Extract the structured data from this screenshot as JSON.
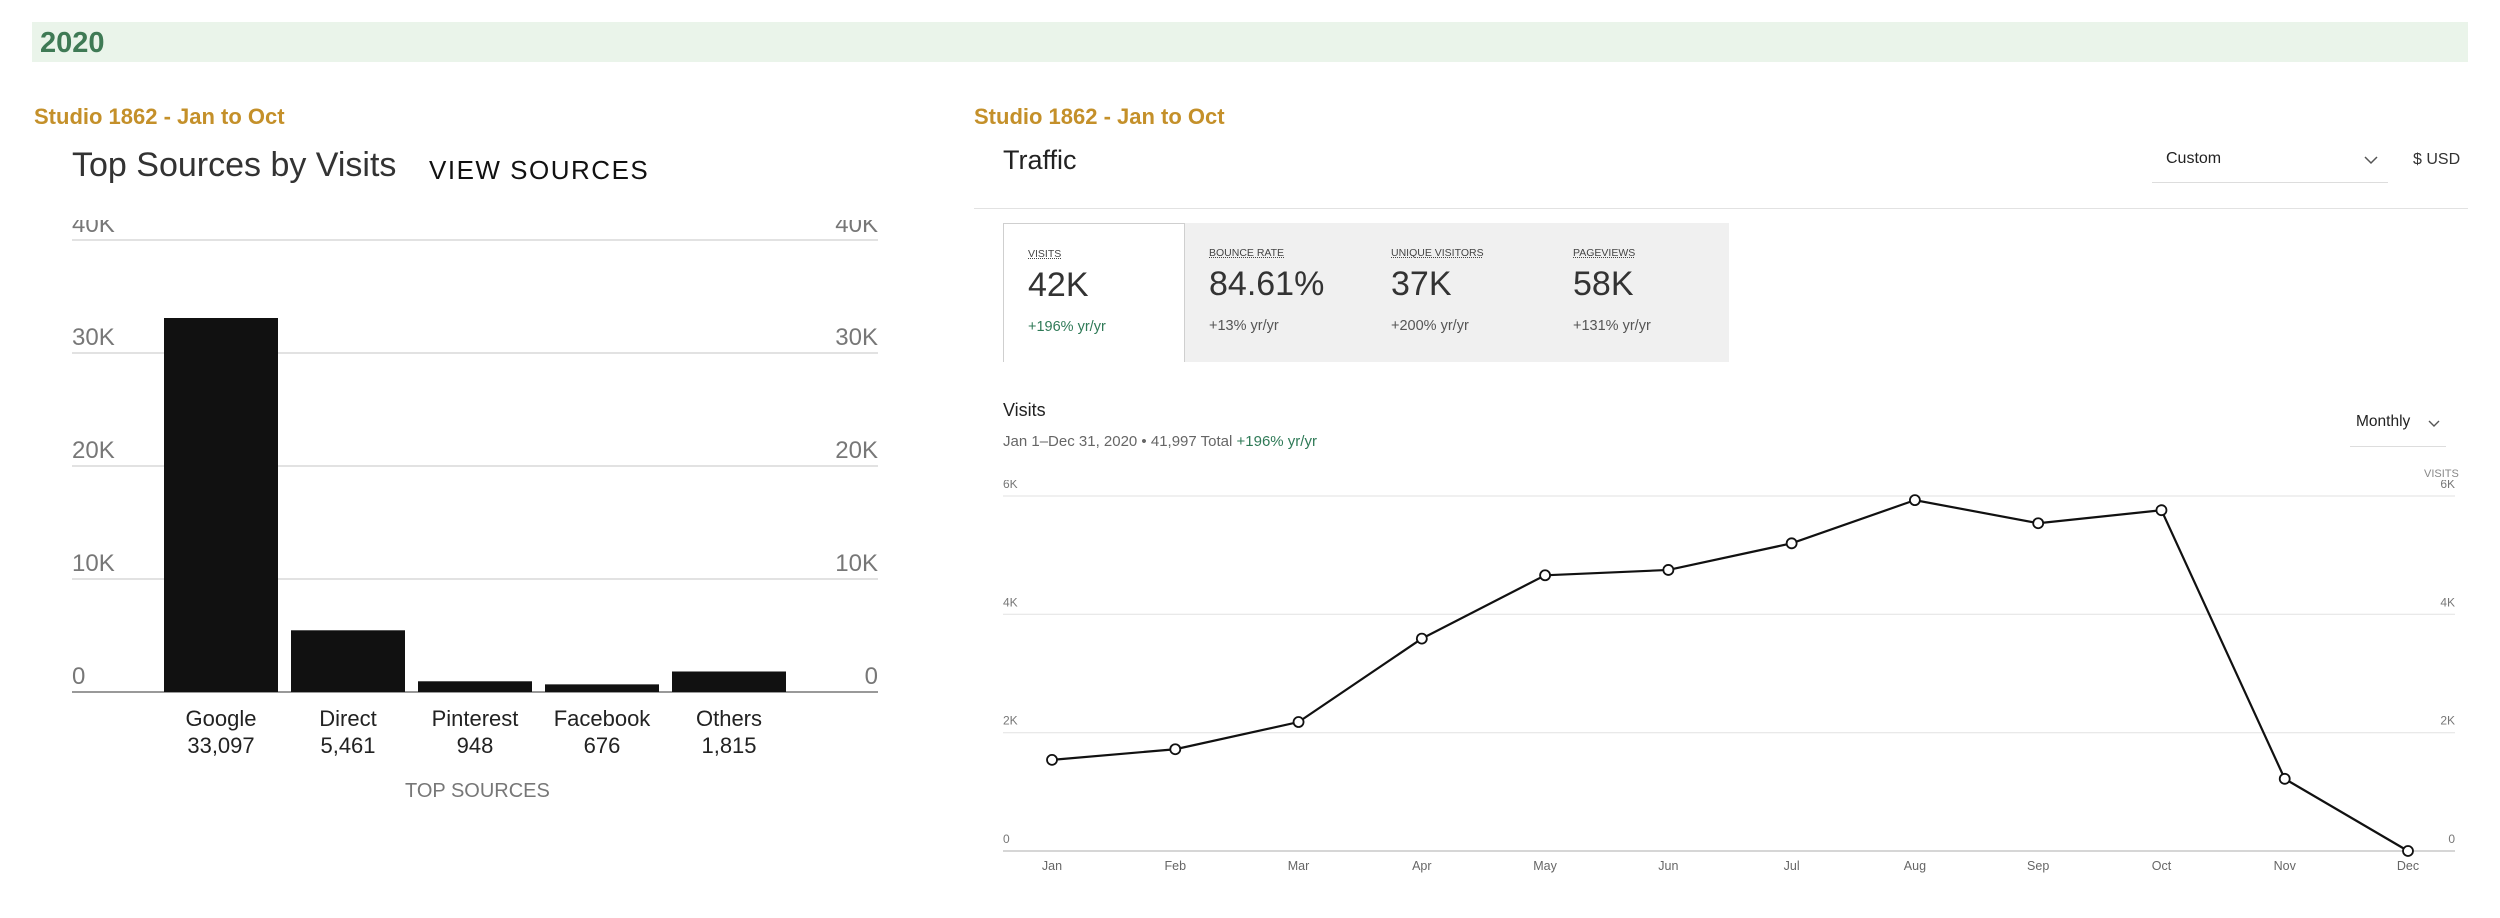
{
  "year_label": "2020",
  "left_panel": {
    "studio_label": "Studio 1862 - Jan to Oct",
    "title": "Top Sources by Visits",
    "view_sources_link": "VIEW SOURCES",
    "x_axis_title": "TOP SOURCES"
  },
  "right_panel": {
    "studio_label": "Studio 1862 - Jan to Oct",
    "title": "Traffic",
    "range_dropdown": "Custom",
    "currency": "$ USD",
    "kpis": [
      {
        "label": "Visits",
        "value": "42K",
        "change": "+196% yr/yr",
        "active": true
      },
      {
        "label": "Bounce Rate",
        "value": "84.61%",
        "change": "+13% yr/yr",
        "active": false
      },
      {
        "label": "Unique Visitors",
        "value": "37K",
        "change": "+200% yr/yr",
        "active": false
      },
      {
        "label": "Pageviews",
        "value": "58K",
        "change": "+131% yr/yr",
        "active": false
      }
    ],
    "visits_title": "Visits",
    "visits_subtitle": "Jan 1–Dec 31, 2020 • 41,997 Total",
    "visits_change": "+196% yr/yr",
    "interval_dropdown": "Monthly",
    "axis_tag": "VISITS"
  },
  "chart_data": [
    {
      "type": "bar",
      "title": "Top Sources by Visits",
      "xlabel": "TOP SOURCES",
      "ylabel": "",
      "categories": [
        "Google",
        "Direct",
        "Pinterest",
        "Facebook",
        "Others"
      ],
      "values": [
        33097,
        5461,
        948,
        676,
        1815
      ],
      "value_labels": [
        "33,097",
        "5,461",
        "948",
        "676",
        "1,815"
      ],
      "ylim": [
        0,
        40000
      ],
      "yticks": [
        0,
        10000,
        20000,
        30000,
        40000
      ],
      "ytick_labels": [
        "0",
        "10K",
        "20K",
        "30K",
        "40K"
      ],
      "y_axis_both_sides": true,
      "grid": true,
      "bar_color": "#111111"
    },
    {
      "type": "line",
      "title": "Visits",
      "xlabel": "",
      "ylabel": "VISITS",
      "categories": [
        "Jan",
        "Feb",
        "Mar",
        "Apr",
        "May",
        "Jun",
        "Jul",
        "Aug",
        "Sep",
        "Oct",
        "Nov",
        "Dec"
      ],
      "series": [
        {
          "values": [
            1540,
            1720,
            2180,
            3590,
            4660,
            4750,
            5200,
            5930,
            5540,
            5760,
            1220,
            0
          ]
        }
      ],
      "ylim": [
        0,
        6000
      ],
      "yticks": [
        0,
        2000,
        4000,
        6000
      ],
      "ytick_labels": [
        "0",
        "2K",
        "4K",
        "6K"
      ],
      "y_axis_both_sides": true,
      "grid": true,
      "line_color": "#111111"
    }
  ]
}
